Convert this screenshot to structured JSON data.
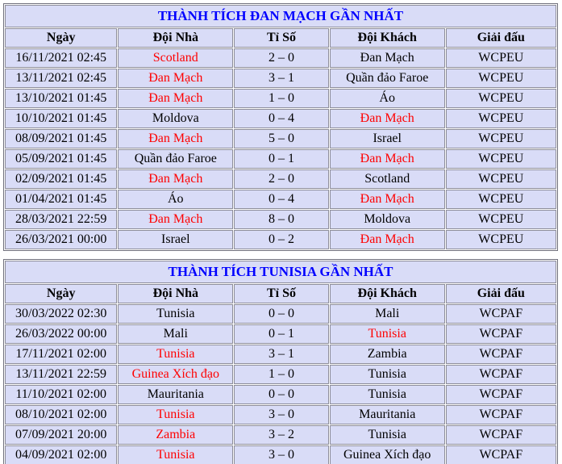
{
  "colors": {
    "page_background": "#ffffff",
    "table_cell_background": "#d9dcf7",
    "title_text": "#0000ff",
    "winner_highlight": "#ff0000",
    "body_text": "#000000",
    "border": "#8d8d99"
  },
  "tables": [
    {
      "title": "THÀNH TÍCH ĐAN MẠCH GẦN NHẤT",
      "headers": [
        "Ngày",
        "Đội Nhà",
        "Tỉ Số",
        "Đội Khách",
        "Giải đấu"
      ],
      "rows": [
        {
          "date": "16/11/2021 02:45",
          "home": "Scotland",
          "score": "2 – 0",
          "away": "Đan Mạch",
          "league": "WCPEU",
          "red": [
            "home"
          ]
        },
        {
          "date": "13/11/2021 02:45",
          "home": "Đan Mạch",
          "score": "3 – 1",
          "away": "Quần đảo Faroe",
          "league": "WCPEU",
          "red": [
            "home"
          ]
        },
        {
          "date": "13/10/2021 01:45",
          "home": "Đan Mạch",
          "score": "1 – 0",
          "away": "Áo",
          "league": "WCPEU",
          "red": [
            "home"
          ]
        },
        {
          "date": "10/10/2021 01:45",
          "home": "Moldova",
          "score": "0 – 4",
          "away": "Đan Mạch",
          "league": "WCPEU",
          "red": [
            "away"
          ]
        },
        {
          "date": "08/09/2021 01:45",
          "home": "Đan Mạch",
          "score": "5 – 0",
          "away": "Israel",
          "league": "WCPEU",
          "red": [
            "home"
          ]
        },
        {
          "date": "05/09/2021 01:45",
          "home": "Quần đảo Faroe",
          "score": "0 – 1",
          "away": "Đan Mạch",
          "league": "WCPEU",
          "red": [
            "away"
          ]
        },
        {
          "date": "02/09/2021 01:45",
          "home": "Đan Mạch",
          "score": "2 – 0",
          "away": "Scotland",
          "league": "WCPEU",
          "red": [
            "home"
          ]
        },
        {
          "date": "01/04/2021 01:45",
          "home": "Áo",
          "score": "0 – 4",
          "away": "Đan Mạch",
          "league": "WCPEU",
          "red": [
            "away"
          ]
        },
        {
          "date": "28/03/2021 22:59",
          "home": "Đan Mạch",
          "score": "8 – 0",
          "away": "Moldova",
          "league": "WCPEU",
          "red": [
            "home"
          ]
        },
        {
          "date": "26/03/2021 00:00",
          "home": "Israel",
          "score": "0 – 2",
          "away": "Đan Mạch",
          "league": "WCPEU",
          "red": [
            "away"
          ]
        }
      ]
    },
    {
      "title": "THÀNH TÍCH TUNISIA GẦN NHẤT",
      "headers": [
        "Ngày",
        "Đội Nhà",
        "Tỉ Số",
        "Đội Khách",
        "Giải đấu"
      ],
      "rows": [
        {
          "date": "30/03/2022 02:30",
          "home": "Tunisia",
          "score": "0 – 0",
          "away": "Mali",
          "league": "WCPAF",
          "red": []
        },
        {
          "date": "26/03/2022 00:00",
          "home": "Mali",
          "score": "0 – 1",
          "away": "Tunisia",
          "league": "WCPAF",
          "red": [
            "away"
          ]
        },
        {
          "date": "17/11/2021 02:00",
          "home": "Tunisia",
          "score": "3 – 1",
          "away": "Zambia",
          "league": "WCPAF",
          "red": [
            "home"
          ]
        },
        {
          "date": "13/11/2021 22:59",
          "home": "Guinea Xích đạo",
          "score": "1 – 0",
          "away": "Tunisia",
          "league": "WCPAF",
          "red": [
            "home"
          ]
        },
        {
          "date": "11/10/2021 02:00",
          "home": "Mauritania",
          "score": "0 – 0",
          "away": "Tunisia",
          "league": "WCPAF",
          "red": []
        },
        {
          "date": "08/10/2021 02:00",
          "home": "Tunisia",
          "score": "3 – 0",
          "away": "Mauritania",
          "league": "WCPAF",
          "red": [
            "home"
          ]
        },
        {
          "date": "07/09/2021 20:00",
          "home": "Zambia",
          "score": "3 – 2",
          "away": "Tunisia",
          "league": "WCPAF",
          "red": [
            "home"
          ]
        },
        {
          "date": "04/09/2021 02:00",
          "home": "Tunisia",
          "score": "3 – 0",
          "away": "Guinea Xích đạo",
          "league": "WCPAF",
          "red": [
            "home"
          ]
        }
      ]
    }
  ]
}
